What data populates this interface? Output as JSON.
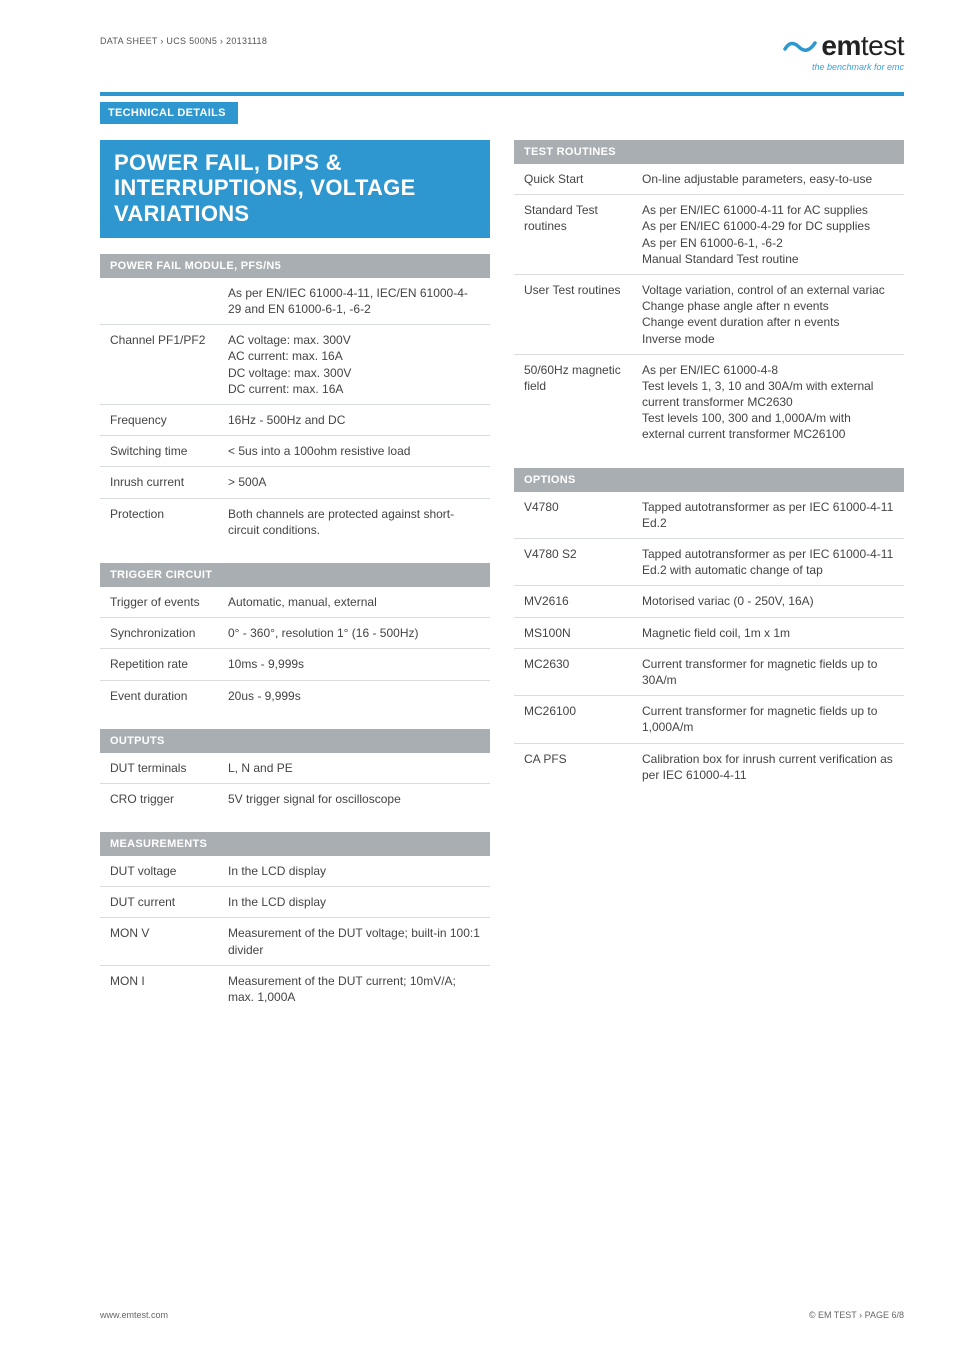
{
  "header": {
    "breadcrumb": "DATA SHEET › UCS 500N5 › 20131118",
    "logo_text1": "em",
    "logo_text2": "test",
    "logo_tagline": "the benchmark for emc",
    "logo_swirl_color": "#2e97cf"
  },
  "section_label": "TECHNICAL DETAILS",
  "title": "POWER FAIL, DIPS & INTERRUPTIONS, VOLTAGE VARIATIONS",
  "colors": {
    "accent": "#2e97cf",
    "table_header": "#a9aeb2",
    "border": "#d9dcde",
    "text": "#444444"
  },
  "left_tables": [
    {
      "header": "POWER FAIL MODULE, PFS/N5",
      "rows": [
        {
          "k": "",
          "v": "As per EN/IEC 61000-4-11, IEC/EN 61000-4-29 and EN 61000-6-1, -6-2"
        },
        {
          "k": "Channel PF1/PF2",
          "v": "AC voltage: max. 300V\nAC current: max. 16A\nDC voltage: max. 300V\nDC current: max. 16A"
        },
        {
          "k": "Frequency",
          "v": "16Hz - 500Hz and DC"
        },
        {
          "k": "Switching time",
          "v": "< 5us into a 100ohm resistive load"
        },
        {
          "k": "Inrush current",
          "v": "> 500A"
        },
        {
          "k": "Protection",
          "v": "Both channels are protected against short-circuit conditions."
        }
      ]
    },
    {
      "header": "TRIGGER CIRCUIT",
      "rows": [
        {
          "k": "Trigger of events",
          "v": "Automatic, manual, external"
        },
        {
          "k": "Synchronization",
          "v": "0° - 360°, resolution 1° (16 - 500Hz)"
        },
        {
          "k": "Repetition rate",
          "v": "10ms - 9,999s"
        },
        {
          "k": "Event duration",
          "v": "20us - 9,999s"
        }
      ]
    },
    {
      "header": "OUTPUTS",
      "rows": [
        {
          "k": "DUT terminals",
          "v": "L, N and PE"
        },
        {
          "k": "CRO trigger",
          "v": "5V trigger signal for oscilloscope"
        }
      ]
    },
    {
      "header": "MEASUREMENTS",
      "rows": [
        {
          "k": "DUT voltage",
          "v": "In the LCD display"
        },
        {
          "k": "DUT current",
          "v": "In the LCD display"
        },
        {
          "k": "MON V",
          "v": "Measurement of the DUT voltage; built-in 100:1 divider"
        },
        {
          "k": "MON I",
          "v": "Measurement of the DUT current; 10mV/A; max. 1,000A"
        }
      ]
    }
  ],
  "right_tables": [
    {
      "header": "TEST ROUTINES",
      "rows": [
        {
          "k": "Quick Start",
          "v": "On-line adjustable parameters, easy-to-use"
        },
        {
          "k": "Standard Test routines",
          "v": "As per EN/IEC 61000-4-11 for AC supplies\nAs per EN/IEC 61000-4-29 for DC supplies\nAs per EN 61000-6-1, -6-2\nManual Standard Test routine"
        },
        {
          "k": "User Test routines",
          "v": "Voltage variation, control of an external variac\nChange phase angle after n events\nChange event duration after n events\nInverse mode"
        },
        {
          "k": "50/60Hz magnetic field",
          "v": "As per EN/IEC 61000-4-8\nTest levels 1, 3, 10 and 30A/m with external current transformer MC2630\nTest levels 100, 300 and 1,000A/m with external current transformer MC26100"
        }
      ]
    },
    {
      "header": "OPTIONS",
      "rows": [
        {
          "k": "V4780",
          "v": "Tapped autotransformer as per IEC 61000-4-11 Ed.2"
        },
        {
          "k": "V4780 S2",
          "v": "Tapped autotransformer as per IEC 61000-4-11 Ed.2 with automatic change of tap"
        },
        {
          "k": "MV2616",
          "v": "Motorised variac (0 - 250V, 16A)"
        },
        {
          "k": "MS100N",
          "v": "Magnetic field coil, 1m x 1m"
        },
        {
          "k": "MC2630",
          "v": "Current transformer for magnetic fields up to 30A/m"
        },
        {
          "k": "MC26100",
          "v": "Current transformer for magnetic fields up to 1,000A/m"
        },
        {
          "k": "CA PFS",
          "v": "Calibration box for inrush current verification as per IEC 61000-4-11"
        }
      ]
    }
  ],
  "footer": {
    "left": "www.emtest.com",
    "right": "© EM TEST › PAGE 6/8"
  }
}
